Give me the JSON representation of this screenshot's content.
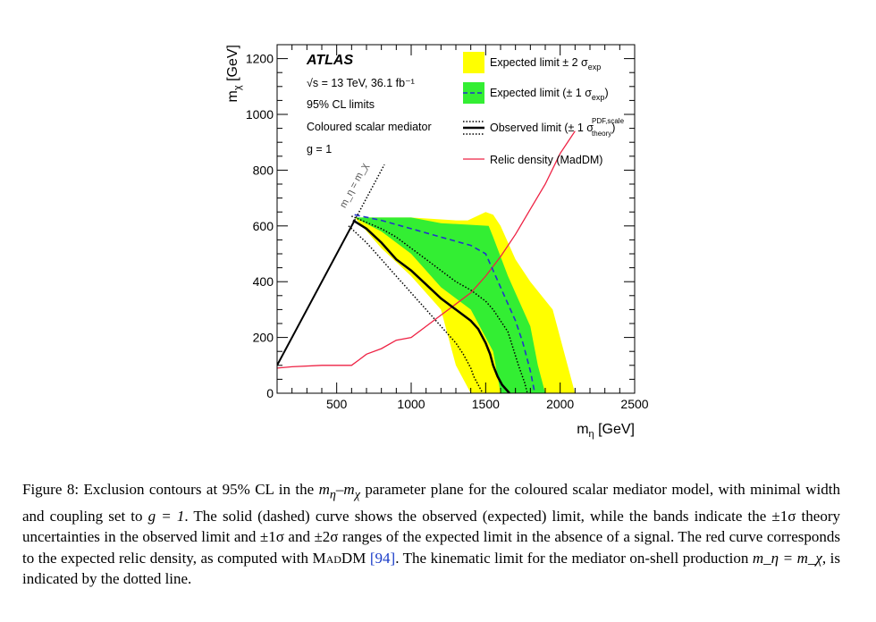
{
  "chart_data": {
    "type": "area",
    "experiment": "ATLAS",
    "energy_label": "√s = 13 TeV, 36.1 fb⁻¹",
    "cl_label": "95% CL limits",
    "model_label": "Coloured scalar mediator",
    "coupling_label": "g = 1",
    "xlabel": "m_η [GeV]",
    "ylabel": "m_χ [GeV]",
    "xlim": [
      100,
      2500
    ],
    "ylim": [
      0,
      1250
    ],
    "xticks": [
      500,
      1000,
      1500,
      2000,
      2500
    ],
    "yticks": [
      0,
      200,
      400,
      600,
      800,
      1000,
      1200
    ],
    "diagonal_label": "m_η = m_χ",
    "legend": [
      {
        "label": "Expected limit ± 2 σ_exp",
        "color": "#ffff00"
      },
      {
        "label": "Expected limit (± 1 σ_exp)",
        "color": "#33ee33"
      },
      {
        "label": "Observed limit (± 1 σ_theory^PDF,scale)",
        "color": "#000000"
      },
      {
        "label": "Relic density (MadDM)",
        "color": "#ee2244"
      }
    ],
    "series": [
      {
        "name": "Expected limit ± 2 σ_exp",
        "x": [
          620,
          1000,
          1300,
          1380,
          1500,
          1550,
          1600,
          1700,
          1800,
          1950,
          2100,
          1980,
          1700,
          1550,
          1500,
          1400,
          1300,
          1200,
          1000,
          800,
          620
        ],
        "y": [
          630,
          630,
          620,
          620,
          650,
          640,
          600,
          480,
          400,
          300,
          0,
          0,
          0,
          0,
          0,
          0,
          100,
          300,
          420,
          520,
          630
        ]
      },
      {
        "name": "Expected limit (± 1 σ_exp)",
        "x": [
          620,
          1000,
          1200,
          1520,
          1550,
          1650,
          1800,
          1850,
          1900,
          1800,
          1700,
          1600,
          1550,
          1400,
          1300,
          1200,
          1000,
          800,
          620
        ],
        "y": [
          630,
          630,
          610,
          600,
          560,
          420,
          240,
          100,
          0,
          0,
          0,
          0,
          150,
          300,
          340,
          380,
          500,
          580,
          630
        ]
      },
      {
        "name": "Observed limit",
        "x": [
          610,
          700,
          800,
          900,
          1000,
          1100,
          1200,
          1300,
          1400,
          1450,
          1500,
          1530,
          1550,
          1580,
          1610,
          1660
        ],
        "y": [
          620,
          590,
          540,
          480,
          440,
          390,
          340,
          300,
          260,
          230,
          180,
          140,
          100,
          60,
          30,
          0
        ]
      },
      {
        "name": "Observed limit +1σ theory",
        "x": [
          600,
          800,
          900,
          1000,
          1100,
          1200,
          1300,
          1400,
          1500,
          1550,
          1650,
          1720,
          1760,
          1780
        ],
        "y": [
          635,
          590,
          560,
          520,
          480,
          440,
          400,
          370,
          330,
          300,
          220,
          100,
          40,
          0
        ]
      },
      {
        "name": "Observed limit −1σ theory",
        "x": [
          580,
          700,
          800,
          900,
          1000,
          1100,
          1200,
          1300,
          1350,
          1400,
          1420,
          1440,
          1460,
          1480
        ],
        "y": [
          600,
          540,
          480,
          420,
          360,
          300,
          240,
          180,
          140,
          90,
          60,
          40,
          20,
          0
        ]
      },
      {
        "name": "Expected limit",
        "x": [
          620,
          800,
          1000,
          1200,
          1400,
          1500,
          1550,
          1600,
          1650,
          1700,
          1750,
          1800,
          1830
        ],
        "y": [
          640,
          620,
          590,
          560,
          530,
          500,
          440,
          380,
          320,
          260,
          180,
          80,
          0
        ]
      },
      {
        "name": "Relic density (MadDM)",
        "x": [
          100,
          200,
          400,
          600,
          650,
          700,
          800,
          900,
          1000,
          1100,
          1200,
          1300,
          1400,
          1500,
          1600,
          1700,
          1800,
          1900,
          2000,
          2100
        ],
        "y": [
          90,
          95,
          100,
          100,
          120,
          140,
          160,
          190,
          200,
          240,
          280,
          320,
          360,
          420,
          490,
          570,
          660,
          750,
          860,
          940
        ]
      },
      {
        "name": "Kinematic limit m_η = m_χ",
        "x": [
          100,
          620
        ],
        "y": [
          100,
          620
        ]
      },
      {
        "name": "Kinematic limit (dotted)",
        "x": [
          620,
          820
        ],
        "y": [
          620,
          820
        ]
      }
    ]
  },
  "caption": {
    "fig_label": "Figure 8:",
    "text_1": " Exclusion contours at 95% CL in the ",
    "m_eta_m_chi": "m",
    "text_2": " parameter plane for the coloured scalar mediator model, with minimal width and coupling set to ",
    "g_eq": "g = 1",
    "text_3": ". The solid (dashed) curve shows the observed (expected) limit, while the bands indicate the ±1σ theory uncertainties in the observed limit and ±1σ and ±2σ ranges of the expected limit in the absence of a signal. The red curve corresponds to the expected relic density, as computed with ",
    "maddm": "MadDM",
    "ref": "[94]",
    "text_4": ". The kinematic limit for the mediator on-shell production ",
    "kin": "m_η = m_χ",
    "text_5": ", is indicated by the dotted line."
  }
}
